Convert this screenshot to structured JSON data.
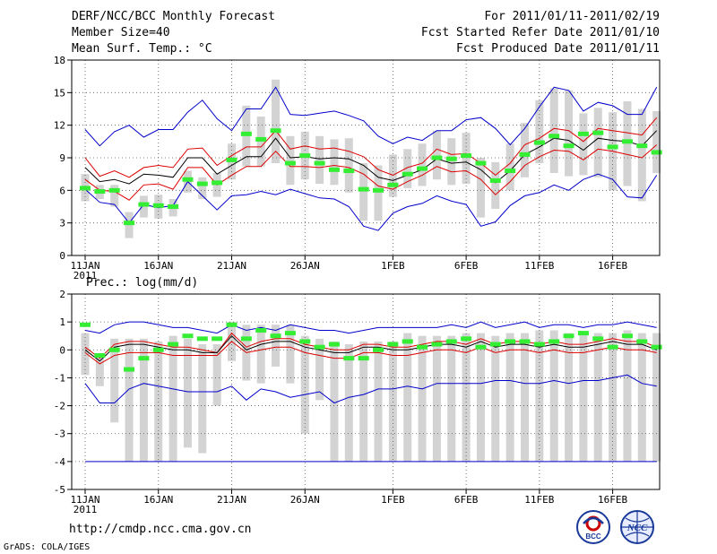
{
  "header": {
    "left": [
      "DERF/NCC/BCC Monthly Forecast",
      "Member Size=40",
      "Mean Surf. Temp.: °C"
    ],
    "right": [
      "For 2011/01/11-2011/02/19",
      "Fcst Started Refer Date 2011/01/10",
      "Fcst Produced Date 2011/01/11"
    ]
  },
  "footer": {
    "url": "http://cmdp.ncc.cma.gov.cn",
    "credit": "GrADS: COLA/IGES",
    "logo_bcc": "BCC",
    "logo_ncc": "NCC"
  },
  "colors": {
    "max_min": "#0000cc",
    "spread": "#dd0000",
    "mean": "#000000",
    "observed": "#33ee33",
    "box": "#d3d3d3",
    "grid": "#555555"
  },
  "chart_data": [
    {
      "type": "line",
      "name": "temperature",
      "ylabel": "Mean Surf. Temp.: °C",
      "ylim": [
        0,
        18
      ],
      "yticks": [
        0,
        3,
        6,
        9,
        12,
        15,
        18
      ],
      "xlim": [
        0,
        39
      ],
      "xticks": [
        {
          "day": 0,
          "label": "11JAN"
        },
        {
          "day": 5,
          "label": "16JAN"
        },
        {
          "day": 10,
          "label": "21JAN"
        },
        {
          "day": 15,
          "label": "26JAN"
        },
        {
          "day": 21,
          "label": "1FEB"
        },
        {
          "day": 26,
          "label": "6FEB"
        },
        {
          "day": 31,
          "label": "11FEB"
        },
        {
          "day": 36,
          "label": "16FEB"
        }
      ],
      "year_label": "2011",
      "series": [
        {
          "name": "max",
          "values": [
            11.6,
            10.1,
            11.4,
            12.0,
            10.9,
            11.6,
            11.6,
            13.2,
            14.3,
            12.6,
            11.5,
            13.5,
            13.5,
            15.5,
            13.0,
            12.9,
            13.1,
            13.3,
            12.9,
            12.4,
            11.0,
            10.3,
            10.9,
            10.6,
            11.5,
            11.5,
            12.5,
            12.7,
            11.7,
            10.2,
            11.7,
            13.7,
            15.5,
            15.2,
            13.3,
            14.1,
            13.8,
            13.0,
            13.0,
            15.5
          ]
        },
        {
          "name": "upper",
          "values": [
            9.0,
            7.3,
            7.8,
            7.2,
            8.1,
            8.3,
            8.1,
            9.8,
            9.9,
            8.3,
            9.2,
            10.0,
            10.0,
            11.5,
            9.8,
            10.1,
            9.8,
            9.9,
            9.6,
            9.1,
            7.9,
            7.4,
            8.1,
            8.5,
            9.8,
            9.3,
            9.4,
            8.5,
            7.4,
            8.5,
            10.2,
            10.8,
            11.7,
            11.5,
            10.5,
            11.7,
            11.5,
            11.3,
            11.1,
            12.7
          ]
        },
        {
          "name": "mean",
          "values": [
            8.1,
            6.8,
            7.0,
            6.6,
            7.5,
            7.4,
            7.2,
            9.0,
            9.0,
            7.5,
            8.3,
            9.1,
            9.1,
            10.8,
            9.0,
            9.1,
            8.9,
            9.0,
            8.9,
            8.3,
            7.2,
            6.9,
            7.4,
            7.9,
            8.9,
            8.5,
            8.6,
            7.9,
            6.7,
            7.8,
            9.3,
            10.0,
            10.8,
            10.6,
            9.7,
            10.8,
            10.6,
            10.5,
            10.1,
            11.5
          ]
        },
        {
          "name": "lower",
          "values": [
            7.0,
            6.0,
            5.9,
            5.1,
            6.5,
            6.6,
            6.1,
            8.1,
            8.1,
            6.5,
            7.4,
            8.2,
            8.2,
            9.6,
            8.2,
            8.2,
            8.1,
            8.3,
            8.1,
            7.5,
            6.4,
            6.1,
            6.8,
            7.4,
            8.2,
            7.7,
            7.8,
            7.0,
            5.6,
            6.8,
            8.3,
            9.1,
            9.7,
            9.6,
            8.8,
            9.8,
            9.6,
            9.3,
            9.0,
            10.2
          ]
        },
        {
          "name": "min",
          "values": [
            6.1,
            4.9,
            4.7,
            3.0,
            4.7,
            4.4,
            4.6,
            6.8,
            5.5,
            4.2,
            5.5,
            5.6,
            5.9,
            5.6,
            6.1,
            5.7,
            5.3,
            5.2,
            4.5,
            2.7,
            2.3,
            3.9,
            4.5,
            4.8,
            5.5,
            5.0,
            4.7,
            2.7,
            3.1,
            4.6,
            5.5,
            5.8,
            6.5,
            6.0,
            7.0,
            7.5,
            7.0,
            5.4,
            5.3,
            7.4
          ]
        },
        {
          "name": "observed",
          "values": [
            6.2,
            5.9,
            6.0,
            3.0,
            4.7,
            4.6,
            4.5,
            7.0,
            6.6,
            6.7,
            8.8,
            11.2,
            10.7,
            11.5,
            8.5,
            9.2,
            8.5,
            7.9,
            7.8,
            6.1,
            6.0,
            6.5,
            7.5,
            8.0,
            9.0,
            8.9,
            9.2,
            8.5,
            6.9,
            7.8,
            9.3,
            10.4,
            11.0,
            10.1,
            11.2,
            11.3,
            10.0,
            10.5,
            10.1,
            9.5
          ]
        }
      ],
      "boxes": [
        [
          5.0,
          7.5
        ],
        [
          5.2,
          6.5
        ],
        [
          4.5,
          6.5
        ],
        [
          1.6,
          4.0
        ],
        [
          3.5,
          5.5
        ],
        [
          3.4,
          5.6
        ],
        [
          3.6,
          5.2
        ],
        [
          5.8,
          7.8
        ],
        [
          5.2,
          7.2
        ],
        [
          5.4,
          7.6
        ],
        [
          7.0,
          10.3
        ],
        [
          8.2,
          13.8
        ],
        [
          8.2,
          12.8
        ],
        [
          8.5,
          16.2
        ],
        [
          6.5,
          11.0
        ],
        [
          7.0,
          11.4
        ],
        [
          6.6,
          11.0
        ],
        [
          6.5,
          10.7
        ],
        [
          5.8,
          10.8
        ],
        [
          3.2,
          8.5
        ],
        [
          3.2,
          8.3
        ],
        [
          5.4,
          9.3
        ],
        [
          6.2,
          9.8
        ],
        [
          6.4,
          10.3
        ],
        [
          7.0,
          11.5
        ],
        [
          6.5,
          10.8
        ],
        [
          6.6,
          11.3
        ],
        [
          3.5,
          9.0
        ],
        [
          4.3,
          8.6
        ],
        [
          6.0,
          10.3
        ],
        [
          7.2,
          12.2
        ],
        [
          8.5,
          14.3
        ],
        [
          7.6,
          15.4
        ],
        [
          7.3,
          15.2
        ],
        [
          7.4,
          13.1
        ],
        [
          7.2,
          13.6
        ],
        [
          6.0,
          13.2
        ],
        [
          6.4,
          14.2
        ],
        [
          5.0,
          13.5
        ],
        [
          7.6,
          13.3
        ]
      ]
    },
    {
      "type": "line",
      "name": "precipitation",
      "ylabel": "Prec.: log(mm/d)",
      "ylim": [
        -5,
        2
      ],
      "yticks": [
        -5,
        -4,
        -3,
        -2,
        -1,
        0,
        1,
        2
      ],
      "xlim": [
        0,
        39
      ],
      "xticks": [
        {
          "day": 0,
          "label": "11JAN"
        },
        {
          "day": 5,
          "label": "16JAN"
        },
        {
          "day": 10,
          "label": "21JAN"
        },
        {
          "day": 15,
          "label": "26JAN"
        },
        {
          "day": 21,
          "label": "1FEB"
        },
        {
          "day": 26,
          "label": "6FEB"
        },
        {
          "day": 31,
          "label": "11FEB"
        },
        {
          "day": 36,
          "label": "16FEB"
        }
      ],
      "year_label": "2011",
      "series": [
        {
          "name": "max",
          "values": [
            0.7,
            0.6,
            0.9,
            1.0,
            1.0,
            0.9,
            0.8,
            0.8,
            0.7,
            0.6,
            0.9,
            0.7,
            0.8,
            0.7,
            0.9,
            0.8,
            0.7,
            0.7,
            0.6,
            0.7,
            0.8,
            0.8,
            0.8,
            0.8,
            0.8,
            0.9,
            0.8,
            1.0,
            0.8,
            0.9,
            1.0,
            0.8,
            0.9,
            0.9,
            0.8,
            0.9,
            0.9,
            1.0,
            0.9,
            0.8
          ]
        },
        {
          "name": "upper",
          "values": [
            0.1,
            -0.3,
            0.2,
            0.3,
            0.3,
            0.2,
            0.1,
            0.1,
            0.0,
            -0.1,
            0.6,
            0.1,
            0.3,
            0.4,
            0.4,
            0.2,
            0.1,
            0.0,
            0.0,
            0.2,
            0.2,
            0.1,
            0.1,
            0.2,
            0.3,
            0.3,
            0.2,
            0.4,
            0.2,
            0.3,
            0.3,
            0.2,
            0.3,
            0.2,
            0.2,
            0.3,
            0.4,
            0.3,
            0.3,
            0.1
          ]
        },
        {
          "name": "mean",
          "values": [
            0.0,
            -0.4,
            0.1,
            0.2,
            0.2,
            0.1,
            0.0,
            0.0,
            -0.1,
            -0.1,
            0.5,
            0.0,
            0.2,
            0.3,
            0.3,
            0.1,
            0.0,
            -0.1,
            -0.1,
            0.1,
            0.1,
            0.0,
            0.0,
            0.1,
            0.2,
            0.2,
            0.1,
            0.3,
            0.1,
            0.2,
            0.2,
            0.1,
            0.2,
            0.1,
            0.1,
            0.2,
            0.3,
            0.2,
            0.2,
            0.0
          ]
        },
        {
          "name": "lower",
          "values": [
            -0.1,
            -0.5,
            -0.2,
            -0.1,
            -0.1,
            -0.1,
            -0.2,
            -0.2,
            -0.2,
            -0.2,
            0.3,
            -0.1,
            0.0,
            0.1,
            0.1,
            -0.1,
            -0.2,
            -0.3,
            -0.3,
            -0.1,
            -0.1,
            -0.2,
            -0.2,
            -0.1,
            0.0,
            0.0,
            -0.1,
            0.1,
            -0.1,
            0.0,
            0.0,
            -0.1,
            0.0,
            -0.1,
            -0.1,
            0.0,
            0.1,
            0.0,
            0.0,
            -0.1
          ]
        },
        {
          "name": "min",
          "values": [
            -1.2,
            -1.9,
            -1.9,
            -1.4,
            -1.2,
            -1.3,
            -1.4,
            -1.5,
            -1.5,
            -1.5,
            -1.3,
            -1.8,
            -1.4,
            -1.5,
            -1.7,
            -1.6,
            -1.5,
            -1.9,
            -1.7,
            -1.6,
            -1.4,
            -1.4,
            -1.3,
            -1.4,
            -1.2,
            -1.2,
            -1.2,
            -1.2,
            -1.1,
            -1.1,
            -1.2,
            -1.2,
            -1.1,
            -1.2,
            -1.1,
            -1.1,
            -1.0,
            -0.9,
            -1.2,
            -1.3
          ]
        },
        {
          "name": "floor",
          "values": [
            -4.0,
            -4.0,
            -4.0,
            -4.0,
            -4.0,
            -4.0,
            -4.0,
            -4.0,
            -4.0,
            -4.0,
            -4.0,
            -4.0,
            -4.0,
            -4.0,
            -4.0,
            -4.0,
            -4.0,
            -4.0,
            -4.0,
            -4.0,
            -4.0,
            -4.0,
            -4.0,
            -4.0,
            -4.0,
            -4.0,
            -4.0,
            -4.0,
            -4.0,
            -4.0,
            -4.0,
            -4.0,
            -4.0,
            -4.0,
            -4.0,
            -4.0,
            -4.0,
            -4.0,
            -4.0,
            -4.0
          ]
        },
        {
          "name": "observed",
          "values": [
            0.9,
            -0.2,
            0.0,
            -0.7,
            -0.3,
            0.0,
            0.2,
            0.5,
            0.4,
            0.4,
            0.9,
            0.4,
            0.7,
            0.5,
            0.6,
            0.3,
            0.1,
            0.2,
            -0.3,
            -0.3,
            0.0,
            0.2,
            0.3,
            0.1,
            0.2,
            0.3,
            0.4,
            0.1,
            0.2,
            0.3,
            0.3,
            0.2,
            0.3,
            0.5,
            0.6,
            0.4,
            0.1,
            0.5,
            0.3,
            0.1
          ]
        }
      ],
      "boxes": [
        [
          -0.9,
          0.6
        ],
        [
          -1.3,
          -0.2
        ],
        [
          -2.6,
          0.4
        ],
        [
          -4.0,
          0.4
        ],
        [
          -4.0,
          0.4
        ],
        [
          -4.0,
          0.3
        ],
        [
          -4.0,
          0.5
        ],
        [
          -3.5,
          0.4
        ],
        [
          -3.7,
          0.2
        ],
        [
          -2.0,
          0.2
        ],
        [
          -0.4,
          1.0
        ],
        [
          -1.1,
          0.9
        ],
        [
          -1.2,
          0.9
        ],
        [
          -0.6,
          0.9
        ],
        [
          -1.2,
          0.9
        ],
        [
          -3.0,
          0.5
        ],
        [
          -1.8,
          0.4
        ],
        [
          -4.0,
          0.3
        ],
        [
          -4.0,
          0.2
        ],
        [
          -4.0,
          0.3
        ],
        [
          -4.0,
          0.3
        ],
        [
          -4.0,
          0.3
        ],
        [
          -4.0,
          0.6
        ],
        [
          -4.0,
          0.5
        ],
        [
          -4.0,
          0.5
        ],
        [
          -4.0,
          0.5
        ],
        [
          -4.0,
          0.6
        ],
        [
          -4.0,
          0.6
        ],
        [
          -4.0,
          0.5
        ],
        [
          -4.0,
          0.6
        ],
        [
          -4.0,
          0.6
        ],
        [
          -4.0,
          0.7
        ],
        [
          -4.0,
          0.7
        ],
        [
          -4.0,
          0.6
        ],
        [
          -4.0,
          0.6
        ],
        [
          -4.0,
          0.6
        ],
        [
          -4.0,
          0.6
        ],
        [
          -4.0,
          0.7
        ],
        [
          -4.0,
          0.6
        ],
        [
          -4.0,
          0.6
        ]
      ]
    }
  ]
}
